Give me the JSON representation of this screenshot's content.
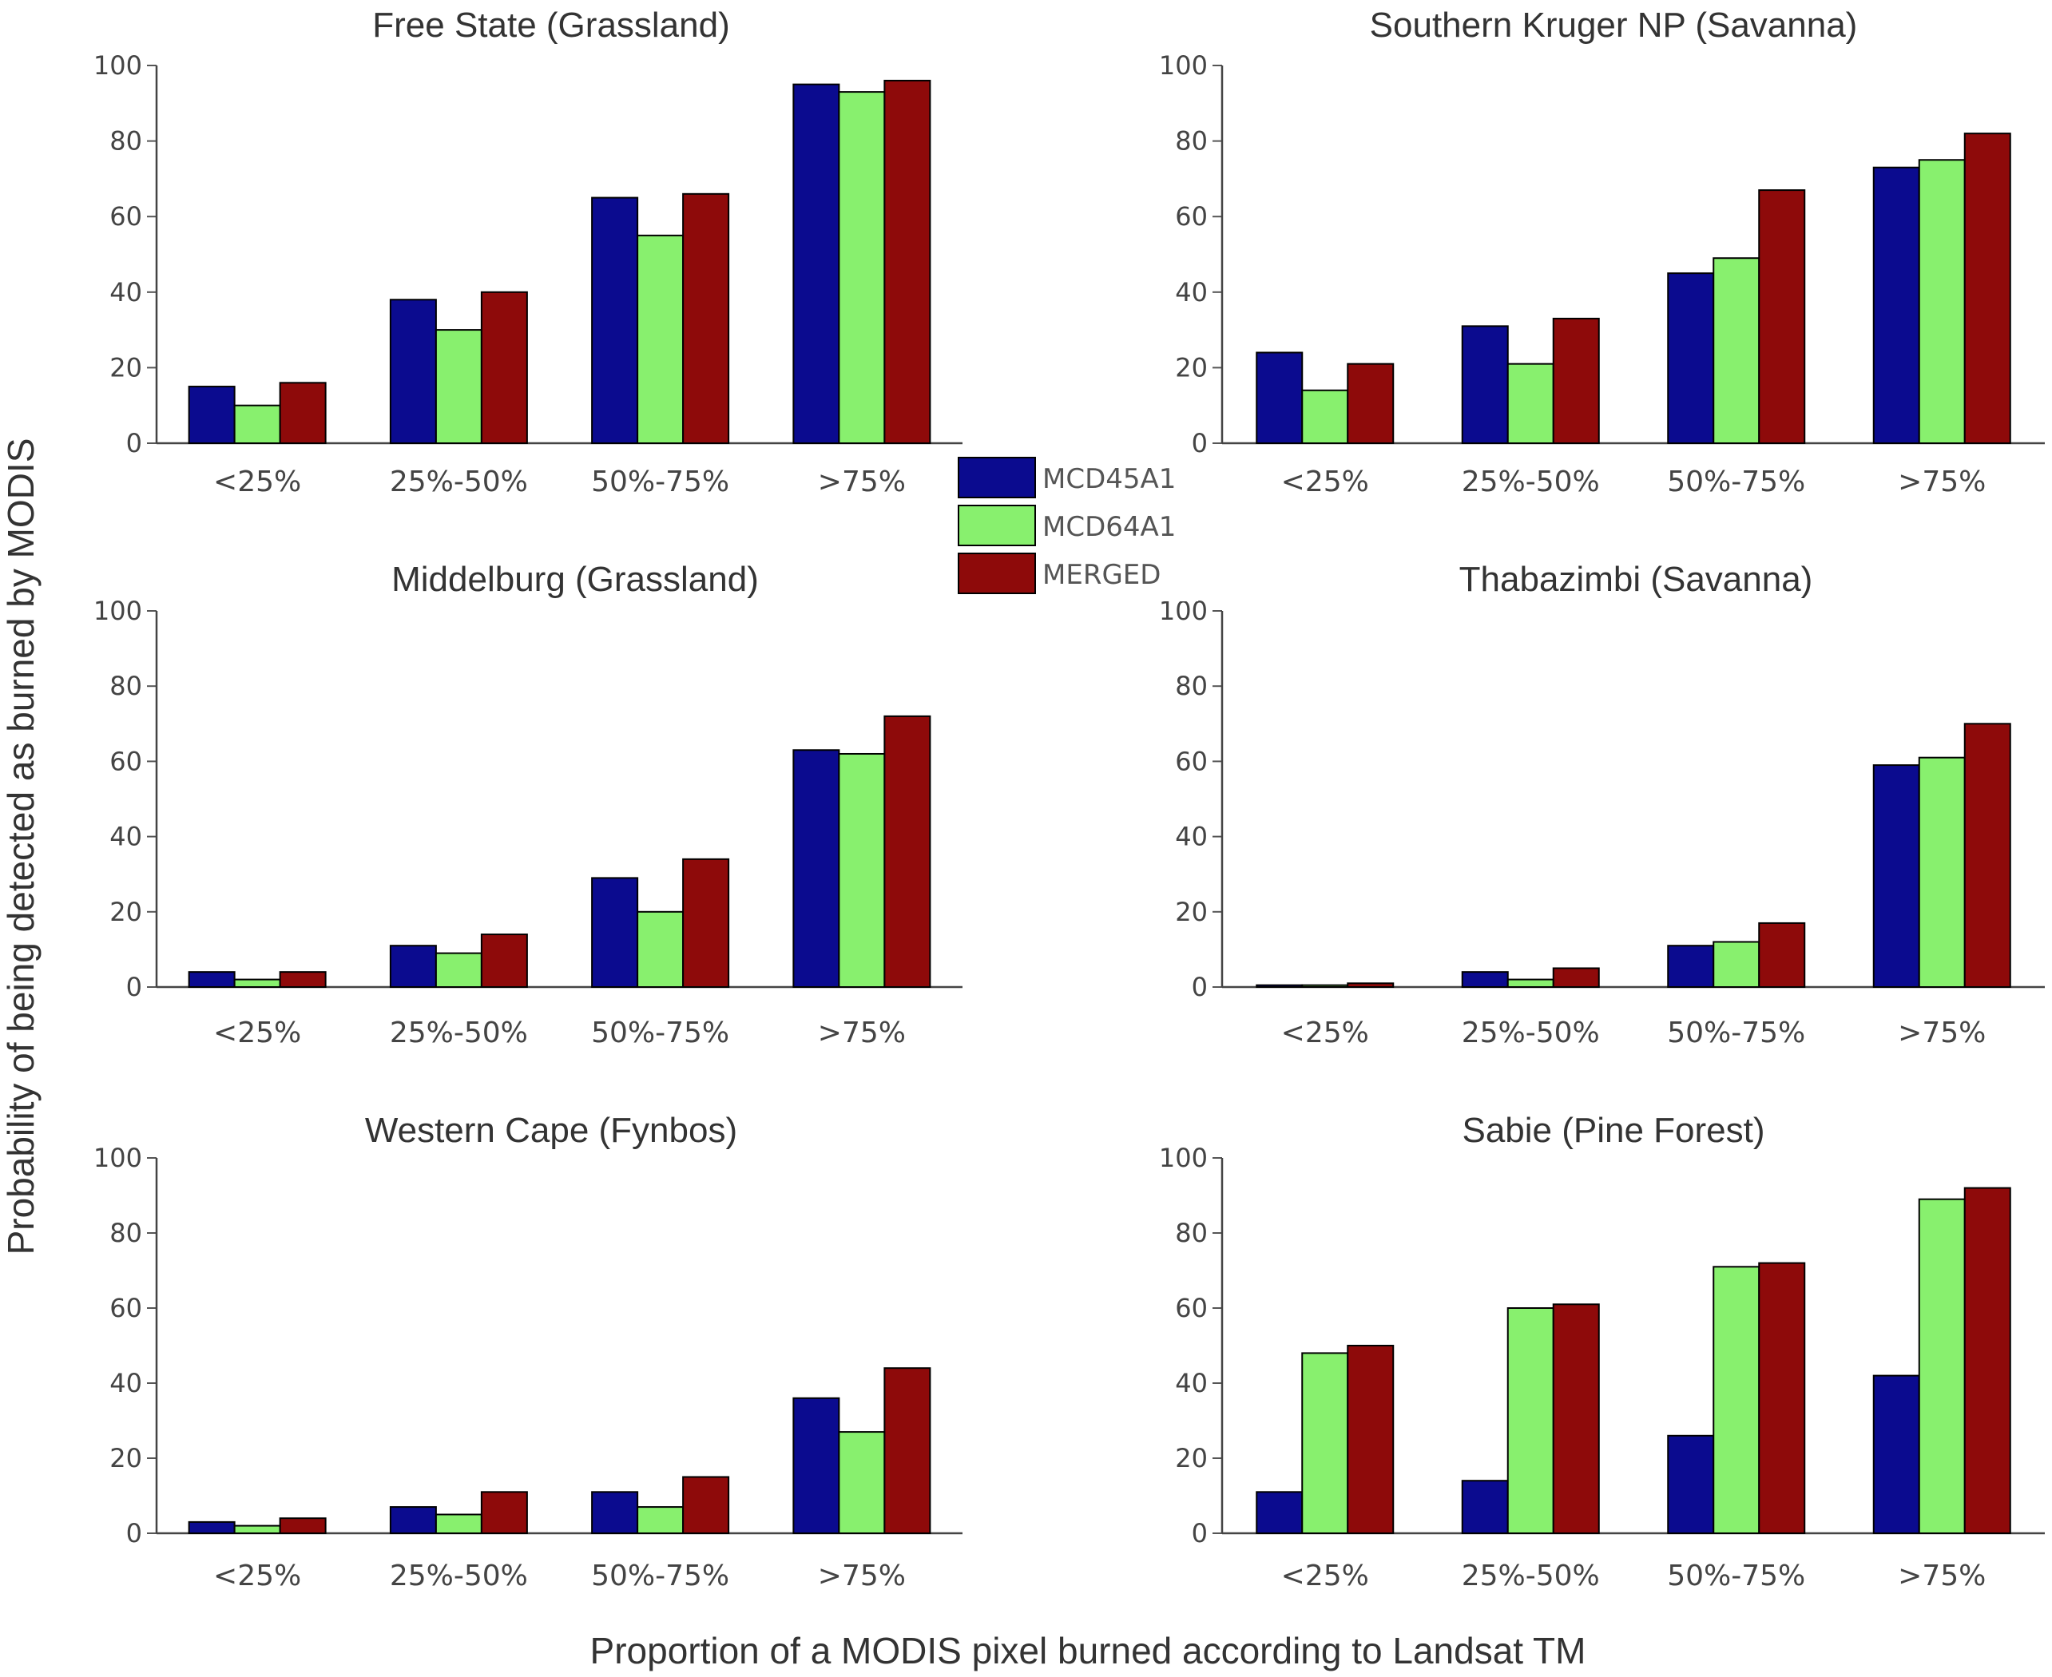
{
  "figure": {
    "ylabel": "Probability of being detected as burned by MODIS",
    "xlabel": "Proportion  of a MODIS pixel burned according to Landsat TM"
  },
  "legend": [
    {
      "name": "MCD45A1",
      "color": "#0b0b8f"
    },
    {
      "name": "MCD64A1",
      "color": "#88f06e"
    },
    {
      "name": "MERGED",
      "color": "#8e0a0a"
    }
  ],
  "chart_data": [
    {
      "type": "bar",
      "title": "Free State (Grassland)",
      "categories": [
        "<25%",
        "25%-50%",
        "50%-75%",
        ">75%"
      ],
      "ylim": [
        0,
        100
      ],
      "yticks": [
        "0",
        "20",
        "40",
        "60",
        "80",
        "100"
      ],
      "series": [
        {
          "name": "MCD45A1",
          "values": [
            15,
            38,
            65,
            95
          ]
        },
        {
          "name": "MCD64A1",
          "values": [
            10,
            30,
            55,
            93
          ]
        },
        {
          "name": "MERGED",
          "values": [
            16,
            40,
            66,
            96
          ]
        }
      ]
    },
    {
      "type": "bar",
      "title": "Southern Kruger NP (Savanna)",
      "categories": [
        "<25%",
        "25%-50%",
        "50%-75%",
        ">75%"
      ],
      "ylim": [
        0,
        100
      ],
      "yticks": [
        "0",
        "20",
        "40",
        "60",
        "80",
        "100"
      ],
      "series": [
        {
          "name": "MCD45A1",
          "values": [
            24,
            31,
            45,
            73
          ]
        },
        {
          "name": "MCD64A1",
          "values": [
            14,
            21,
            49,
            75
          ]
        },
        {
          "name": "MERGED",
          "values": [
            21,
            33,
            67,
            82
          ]
        }
      ]
    },
    {
      "type": "bar",
      "title": "Middelburg (Grassland)",
      "categories": [
        "<25%",
        "25%-50%",
        "50%-75%",
        ">75%"
      ],
      "ylim": [
        0,
        100
      ],
      "yticks": [
        "0",
        "20",
        "40",
        "60",
        "80",
        "100"
      ],
      "series": [
        {
          "name": "MCD45A1",
          "values": [
            4,
            11,
            29,
            63
          ]
        },
        {
          "name": "MCD64A1",
          "values": [
            2,
            9,
            20,
            62
          ]
        },
        {
          "name": "MERGED",
          "values": [
            4,
            14,
            34,
            72
          ]
        }
      ]
    },
    {
      "type": "bar",
      "title": "Thabazimbi (Savanna)",
      "categories": [
        "<25%",
        "25%-50%",
        "50%-75%",
        ">75%"
      ],
      "ylim": [
        0,
        100
      ],
      "yticks": [
        "0",
        "20",
        "40",
        "60",
        "80",
        "100"
      ],
      "series": [
        {
          "name": "MCD45A1",
          "values": [
            0.5,
            4,
            11,
            59
          ]
        },
        {
          "name": "MCD64A1",
          "values": [
            0.5,
            2,
            12,
            61
          ]
        },
        {
          "name": "MERGED",
          "values": [
            1,
            5,
            17,
            70
          ]
        }
      ]
    },
    {
      "type": "bar",
      "title": "Western Cape (Fynbos)",
      "categories": [
        "<25%",
        "25%-50%",
        "50%-75%",
        ">75%"
      ],
      "ylim": [
        0,
        100
      ],
      "yticks": [
        "0",
        "20",
        "40",
        "60",
        "80",
        "100"
      ],
      "series": [
        {
          "name": "MCD45A1",
          "values": [
            3,
            7,
            11,
            36
          ]
        },
        {
          "name": "MCD64A1",
          "values": [
            2,
            5,
            7,
            27
          ]
        },
        {
          "name": "MERGED",
          "values": [
            4,
            11,
            15,
            44
          ]
        }
      ]
    },
    {
      "type": "bar",
      "title": "Sabie (Pine Forest)",
      "categories": [
        "<25%",
        "25%-50%",
        "50%-75%",
        ">75%"
      ],
      "ylim": [
        0,
        100
      ],
      "yticks": [
        "0",
        "20",
        "40",
        "60",
        "80",
        "100"
      ],
      "series": [
        {
          "name": "MCD45A1",
          "values": [
            11,
            14,
            26,
            42
          ]
        },
        {
          "name": "MCD64A1",
          "values": [
            48,
            60,
            71,
            89
          ]
        },
        {
          "name": "MERGED",
          "values": [
            50,
            61,
            72,
            92
          ]
        }
      ]
    }
  ]
}
